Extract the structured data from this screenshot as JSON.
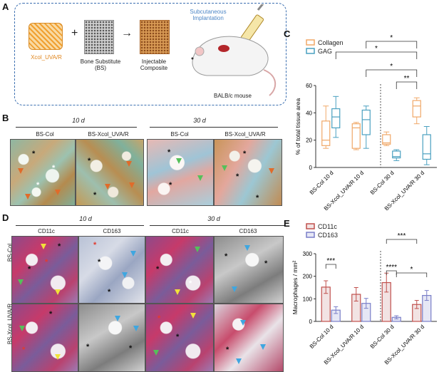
{
  "panel_labels": {
    "a": "A",
    "b": "B",
    "c": "C",
    "d": "D",
    "e": "E"
  },
  "schematic": {
    "xcol_label": "Xcol_UVA/R",
    "bs_label": "Bone Substitute (BS)",
    "composite_label": "Injectable Composite",
    "implant_label": "Subcutaneous Implantation",
    "mouse_label": "BALB/c mouse",
    "plus": "+",
    "arrow": "→"
  },
  "panel_b": {
    "time1": "10 d",
    "time2": "30 d",
    "col1": "BS-Col",
    "col2": "BS-Xcol_UVA/R",
    "col3": "BS-Col",
    "col4": "BS-Xcol_UVA/R",
    "star": "*"
  },
  "panel_d": {
    "time1": "10 d",
    "time2": "30 d",
    "col1": "CD11c",
    "col2": "CD163",
    "col3": "CD11c",
    "col4": "CD163",
    "row1": "BS-Col",
    "row2": "BS-Xcol_UVA/R",
    "star": "*"
  },
  "colors": {
    "collagen": "#f0a868",
    "gag": "#4aa0c0",
    "cd11c": "#c0504d",
    "cd163": "#7a7fc8",
    "dash_border": "#3b6fb0"
  },
  "chart_data": [
    {
      "type": "box",
      "ylabel": "% of total tissue area",
      "ylim": [
        0,
        60
      ],
      "yticks": [
        0,
        20,
        40,
        60
      ],
      "categories": [
        "BS-Col 10 d",
        "BS-Xcol_UVA/R 10 d",
        "BS-Col 30 d",
        "BS-Xcol_UVA/R 30 d"
      ],
      "legend": [
        "Collagen",
        "GAG"
      ],
      "legend_position": "top-left",
      "series": [
        {
          "name": "Collagen",
          "boxes": [
            {
              "min": 14,
              "q1": 16,
              "median": 20,
              "q3": 34,
              "max": 45
            },
            {
              "min": 13,
              "q1": 14,
              "median": 29,
              "q3": 32,
              "max": 33
            },
            {
              "min": 16,
              "q1": 17,
              "median": 18,
              "q3": 24,
              "max": 26
            },
            {
              "min": 32,
              "q1": 37,
              "median": 45,
              "q3": 49,
              "max": 51
            }
          ]
        },
        {
          "name": "GAG",
          "boxes": [
            {
              "min": 22,
              "q1": 29,
              "median": 37,
              "q3": 43,
              "max": 52
            },
            {
              "min": 14,
              "q1": 24,
              "median": 35,
              "q3": 42,
              "max": 45
            },
            {
              "min": 5,
              "q1": 7,
              "median": 8,
              "q3": 12,
              "max": 13
            },
            {
              "min": 2,
              "q1": 6,
              "median": 10,
              "q3": 24,
              "max": 30
            }
          ]
        }
      ],
      "significance": [
        "*",
        "*",
        "*",
        "**"
      ]
    },
    {
      "type": "bar",
      "ylabel": "Macrophages / mm²",
      "ylim": [
        0,
        300
      ],
      "yticks": [
        0,
        100,
        200,
        300
      ],
      "categories": [
        "BS-Col 10 d",
        "BS-Xcol_UVA/R 10 d",
        "BS-Col 30 d",
        "BS-Xcol_UVA/R 30 d"
      ],
      "legend": [
        "CD11c",
        "CD163"
      ],
      "legend_position": "top-left",
      "series": [
        {
          "name": "CD11c",
          "values": [
            152,
            120,
            172,
            75
          ],
          "errors": [
            28,
            30,
            42,
            18
          ]
        },
        {
          "name": "CD163",
          "values": [
            50,
            80,
            18,
            115
          ],
          "errors": [
            15,
            22,
            7,
            22
          ]
        }
      ],
      "significance": [
        "***",
        "****",
        "***",
        "*"
      ]
    }
  ]
}
